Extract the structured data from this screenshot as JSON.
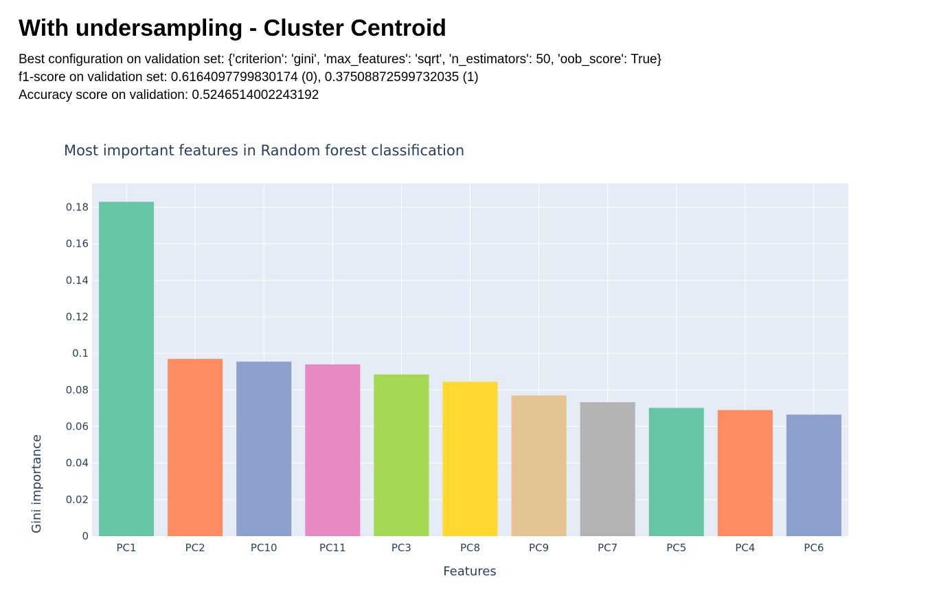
{
  "page": {
    "title": "With undersampling - Cluster Centroid",
    "lines": [
      "Best configuration on validation set: {'criterion': 'gini', 'max_features': 'sqrt', 'n_estimators': 50, 'oob_score': True}",
      "f1-score on validation set: 0.6164097799830174 (0), 0.37508872599732035 (1)",
      "Accuracy score on validation: 0.5246514002243192"
    ]
  },
  "chart_data": {
    "type": "bar",
    "title": "Most important features in Random forest classification",
    "xlabel": "Features",
    "ylabel": "Gini importance",
    "categories": [
      "PC1",
      "PC2",
      "PC10",
      "PC11",
      "PC3",
      "PC8",
      "PC9",
      "PC7",
      "PC5",
      "PC4",
      "PC6"
    ],
    "values": [
      0.183,
      0.097,
      0.0955,
      0.094,
      0.0885,
      0.0845,
      0.077,
      0.0733,
      0.0702,
      0.069,
      0.0665
    ],
    "colors": [
      "#66c5a5",
      "#fc8d62",
      "#8da0cb",
      "#e78ac3",
      "#a6d854",
      "#ffd92f",
      "#e5c494",
      "#b3b3b3",
      "#66c5a5",
      "#fc8d62",
      "#8da0cb"
    ],
    "ylim": [
      0,
      0.193
    ],
    "yticks": [
      0,
      0.02,
      0.04,
      0.06,
      0.08,
      0.1,
      0.12,
      0.14,
      0.16,
      0.18
    ],
    "ytick_labels": [
      "0",
      "0.02",
      "0.04",
      "0.06",
      "0.08",
      "0.1",
      "0.12",
      "0.14",
      "0.16",
      "0.18"
    ],
    "plot_bgcolor": "#e5ecf6",
    "grid": true,
    "legend": "none"
  }
}
